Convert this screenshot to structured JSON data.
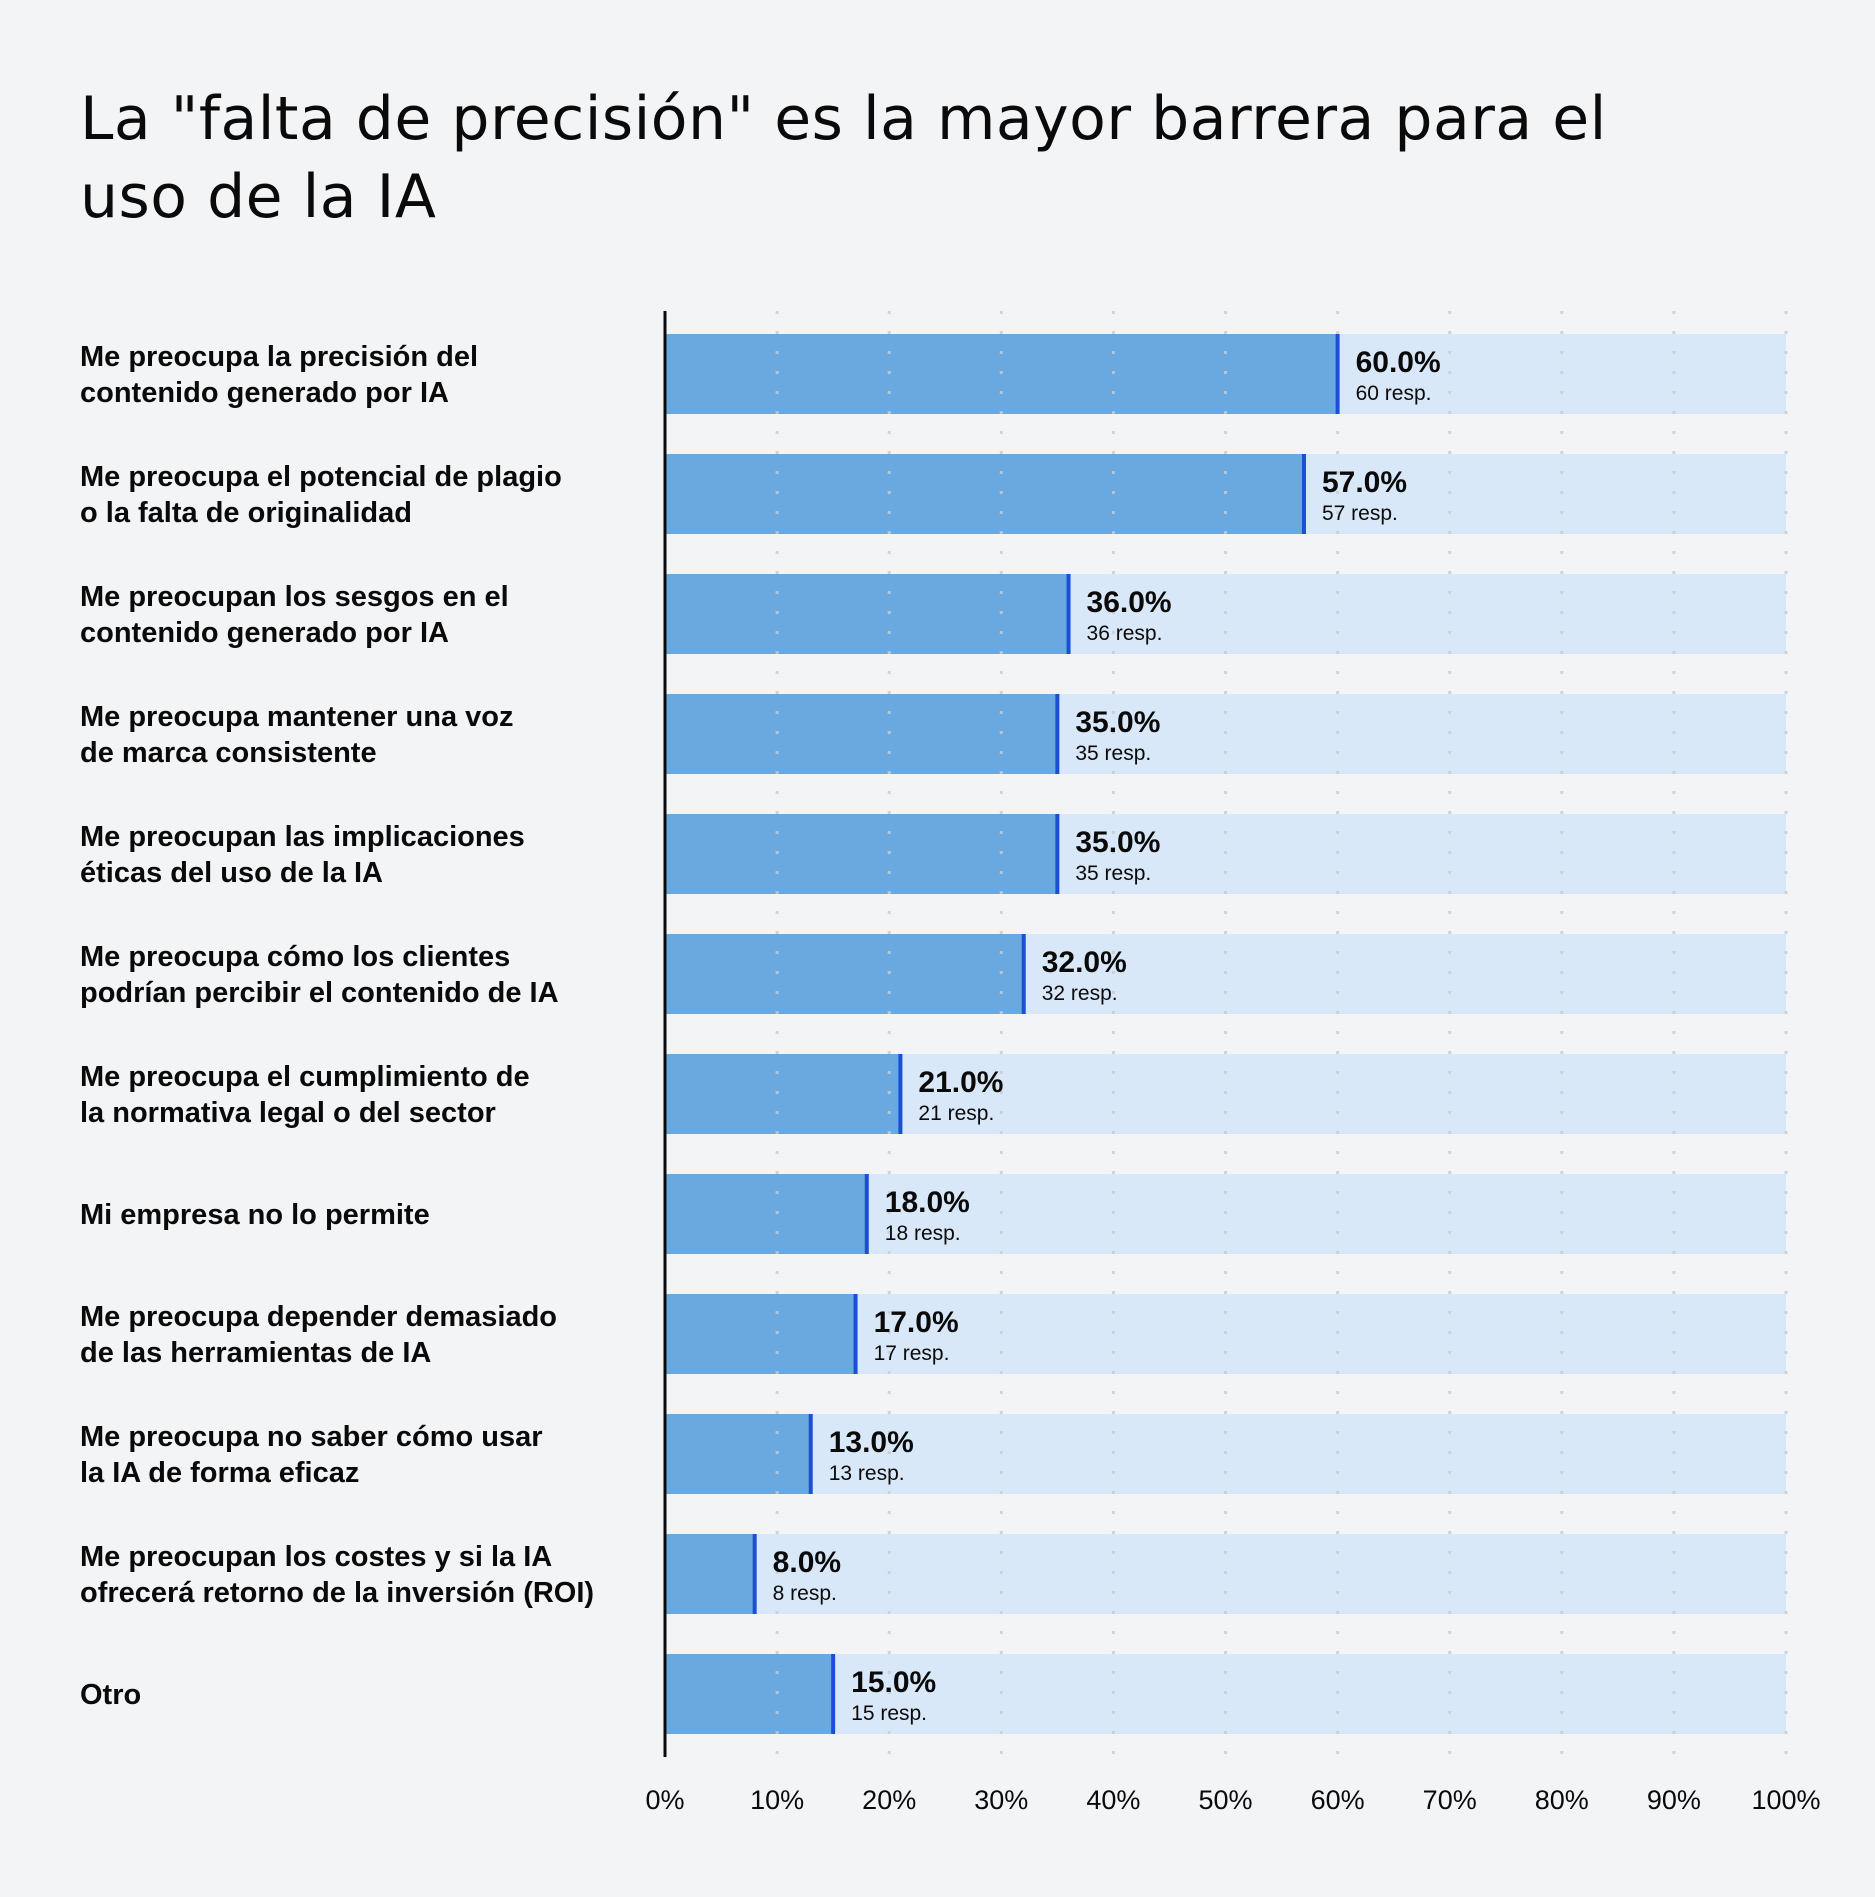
{
  "chart_data": {
    "type": "bar",
    "orientation": "horizontal",
    "title": "La \"falta de precisión\" es la mayor barrera para el uso de la IA",
    "categories": [
      [
        "Me preocupa la precisión del",
        "contenido generado por IA"
      ],
      [
        "Me preocupa el potencial de plagio",
        "o la falta de originalidad"
      ],
      [
        "Me preocupan los sesgos en el",
        "contenido generado por IA"
      ],
      [
        "Me preocupa mantener una voz",
        "de marca consistente"
      ],
      [
        "Me preocupan las implicaciones",
        "éticas del uso de la IA"
      ],
      [
        "Me preocupa cómo los clientes",
        "podrían percibir el contenido de IA"
      ],
      [
        "Me preocupa el cumplimiento de",
        "la normativa legal o del sector"
      ],
      [
        "Mi empresa no lo permite"
      ],
      [
        "Me preocupa depender demasiado",
        "de las herramientas de IA"
      ],
      [
        "Me preocupa no saber cómo usar",
        "la IA de forma eficaz"
      ],
      [
        "Me preocupan los costes y si la IA",
        "ofrecerá retorno de la inversión (ROI)"
      ],
      [
        "Otro"
      ]
    ],
    "values": [
      60.0,
      57.0,
      36.0,
      35.0,
      35.0,
      32.0,
      21.0,
      18.0,
      17.0,
      13.0,
      8.0,
      15.0
    ],
    "value_labels": [
      "60.0%",
      "57.0%",
      "36.0%",
      "35.0%",
      "35.0%",
      "32.0%",
      "21.0%",
      "18.0%",
      "17.0%",
      "13.0%",
      "8.0%",
      "15.0%"
    ],
    "responses": [
      "60 resp.",
      "57 resp.",
      "36 resp.",
      "35 resp.",
      "35 resp.",
      "32 resp.",
      "21 resp.",
      "18 resp.",
      "17 resp.",
      "13 resp.",
      "8 resp.",
      "15 resp."
    ],
    "xlim": [
      0,
      100
    ],
    "xticks": [
      "0%",
      "10%",
      "20%",
      "30%",
      "40%",
      "50%",
      "60%",
      "70%",
      "80%",
      "90%",
      "100%"
    ],
    "grid": true,
    "colors": {
      "background": "#f3f4f6",
      "bar": "#6aa9e0",
      "track": "#d9e8f8",
      "marker": "#1a4fd6",
      "axis": "#0a0a0a",
      "grid": "#c9ccd2"
    }
  }
}
